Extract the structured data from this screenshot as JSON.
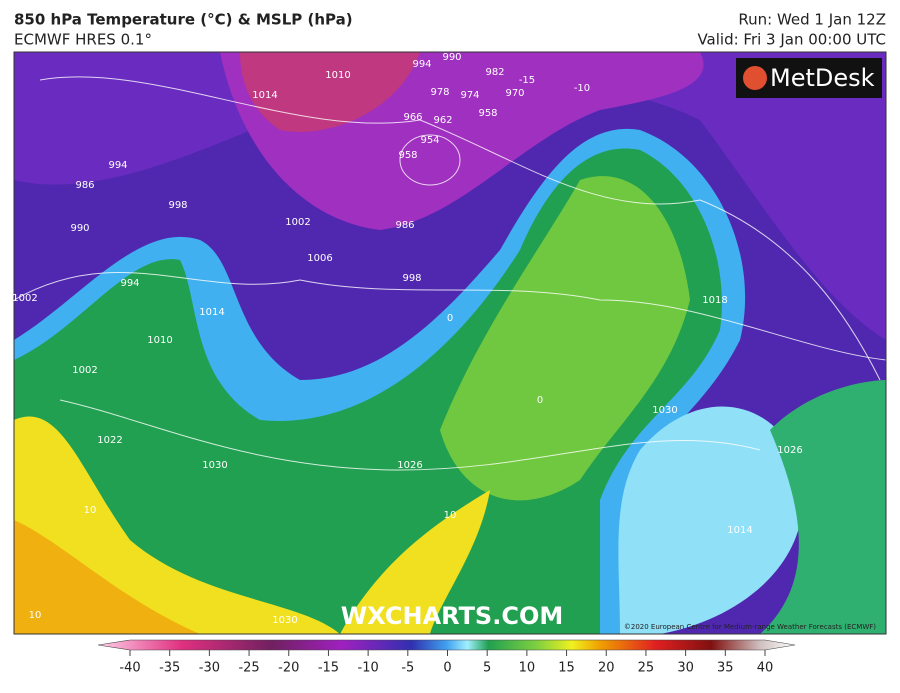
{
  "header": {
    "title": "850 hPa Temperature (°C) & MSLP (hPa)",
    "subtitle": "ECMWF HRES 0.1°",
    "run": "Run: Wed 1 Jan 12Z",
    "valid": "Valid: Fri 3 Jan 00:00 UTC"
  },
  "map": {
    "logo": "MetDesk",
    "watermark": "WXCHARTS.COM",
    "copyright": "©2020 European Centre for Medium-range Weather Forecasts (ECMWF)",
    "labels": [
      994,
      986,
      990,
      998,
      1002,
      994,
      1010,
      1002,
      1014,
      1022,
      1030,
      10,
      10,
      1030,
      1002,
      1006,
      998,
      986,
      958,
      954,
      966,
      962,
      978,
      974,
      970,
      982,
      -15,
      -10,
      958,
      1014,
      1010,
      994,
      990,
      1018,
      1030,
      1026,
      1026,
      10,
      0,
      0,
      1014
    ]
  },
  "colorbar": {
    "ticks": [
      -40,
      -35,
      -30,
      -25,
      -20,
      -15,
      -10,
      -5,
      0,
      5,
      10,
      15,
      20,
      25,
      30,
      35,
      40
    ]
  }
}
